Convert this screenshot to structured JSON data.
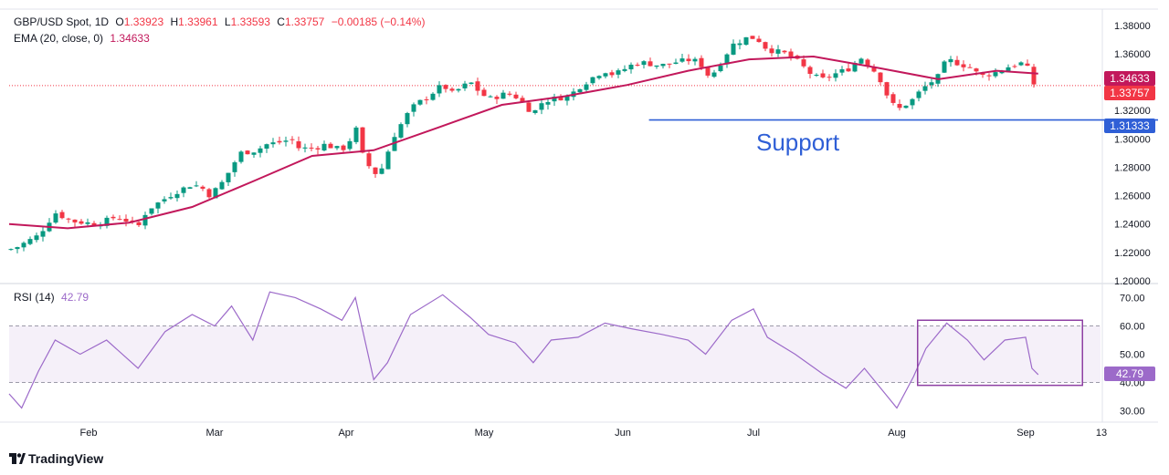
{
  "header": {
    "symbol": "GBP/USD Spot, 1D",
    "o_label": "O",
    "o_val": "1.33923",
    "h_label": "H",
    "h_val": "1.33961",
    "l_label": "L",
    "l_val": "1.33593",
    "c_label": "C",
    "c_val": "1.33757",
    "change": "−0.00185 (−0.14%)",
    "ema_label": "EMA (20, close, 0)",
    "ema_val": "1.34633"
  },
  "rsi_header": {
    "label": "RSI (14)",
    "value": "42.79"
  },
  "annotation": {
    "support_text": "Support"
  },
  "badges": {
    "ema": "1.34633",
    "close": "1.33757",
    "support": "1.31333",
    "rsi": "42.79"
  },
  "brand": {
    "name": "TradingView"
  },
  "colors": {
    "up": "#089981",
    "down": "#f23645",
    "ema": "#c2185b",
    "rsi": "#9c6ac9",
    "support": "#2f5fd6",
    "box": "#8e3fa3"
  },
  "chart_data": [
    {
      "type": "candlestick",
      "title": "GBP/USD Spot, 1D",
      "y_ticks": [
        "1.20000",
        "1.22000",
        "1.24000",
        "1.26000",
        "1.28000",
        "1.30000",
        "1.32000",
        "1.34000",
        "1.36000",
        "1.38000"
      ],
      "ylim": [
        1.2,
        1.385
      ],
      "x_ticks": [
        "Feb",
        "Mar",
        "Apr",
        "May",
        "Jun",
        "Jul",
        "Aug",
        "Sep",
        "13"
      ],
      "support_level": 1.31333,
      "price_close_line": 1.33757,
      "price_trend": [
        [
          "Jan 13",
          1.222
        ],
        [
          "Jan 15",
          1.224
        ],
        [
          "Jan 20",
          1.232
        ],
        [
          "Jan 24",
          1.248
        ],
        [
          "Jan 28",
          1.242
        ],
        [
          "Feb 3",
          1.24
        ],
        [
          "Feb 7",
          1.245
        ],
        [
          "Feb 10",
          1.242
        ],
        [
          "Feb 12",
          1.238
        ],
        [
          "Feb 14",
          1.25
        ],
        [
          "Feb 18",
          1.258
        ],
        [
          "Feb 20",
          1.262
        ],
        [
          "Feb 24",
          1.268
        ],
        [
          "Feb 26",
          1.266
        ],
        [
          "Feb 28",
          1.26
        ],
        [
          "Mar 3",
          1.27
        ],
        [
          "Mar 5",
          1.28
        ],
        [
          "Mar 7",
          1.29
        ],
        [
          "Mar 11",
          1.292
        ],
        [
          "Mar 13",
          1.296
        ],
        [
          "Mar 17",
          1.298
        ],
        [
          "Mar 19",
          1.3
        ],
        [
          "Mar 21",
          1.293
        ],
        [
          "Mar 25",
          1.294
        ],
        [
          "Mar 27",
          1.296
        ],
        [
          "Mar 31",
          1.292
        ],
        [
          "Apr 2",
          1.3
        ],
        [
          "Apr 3",
          1.31
        ],
        [
          "Apr 4",
          1.292
        ],
        [
          "Apr 7",
          1.275
        ],
        [
          "Apr 9",
          1.28
        ],
        [
          "Apr 11",
          1.3
        ],
        [
          "Apr 14",
          1.316
        ],
        [
          "Apr 16",
          1.324
        ],
        [
          "Apr 18",
          1.328
        ],
        [
          "Apr 22",
          1.338
        ],
        [
          "Apr 24",
          1.332
        ],
        [
          "Apr 28",
          1.34
        ],
        [
          "Apr 30",
          1.333
        ],
        [
          "May 2",
          1.328
        ],
        [
          "May 6",
          1.332
        ],
        [
          "May 8",
          1.33
        ],
        [
          "May 12",
          1.318
        ],
        [
          "May 14",
          1.326
        ],
        [
          "May 16",
          1.328
        ],
        [
          "May 20",
          1.33
        ],
        [
          "May 22",
          1.336
        ],
        [
          "May 26",
          1.345
        ],
        [
          "May 28",
          1.348
        ],
        [
          "May 30",
          1.345
        ],
        [
          "Jun 3",
          1.352
        ],
        [
          "Jun 5",
          1.354
        ],
        [
          "Jun 9",
          1.352
        ],
        [
          "Jun 11",
          1.352
        ],
        [
          "Jun 13",
          1.354
        ],
        [
          "Jun 17",
          1.356
        ],
        [
          "Jun 19",
          1.352
        ],
        [
          "Jun 21",
          1.343
        ],
        [
          "Jun 24",
          1.356
        ],
        [
          "Jun 26",
          1.366
        ],
        [
          "Jun 30",
          1.372
        ],
        [
          "Jul 2",
          1.37
        ],
        [
          "Jul 4",
          1.363
        ],
        [
          "Jul 8",
          1.36
        ],
        [
          "Jul 10",
          1.356
        ],
        [
          "Jul 14",
          1.344
        ],
        [
          "Jul 16",
          1.342
        ],
        [
          "Jul 18",
          1.345
        ],
        [
          "Jul 22",
          1.35
        ],
        [
          "Jul 24",
          1.358
        ],
        [
          "Jul 28",
          1.345
        ],
        [
          "Jul 30",
          1.33
        ],
        [
          "Aug 1",
          1.32
        ],
        [
          "Aug 5",
          1.328
        ],
        [
          "Aug 7",
          1.335
        ],
        [
          "Aug 11",
          1.344
        ],
        [
          "Aug 13",
          1.356
        ],
        [
          "Aug 15",
          1.354
        ],
        [
          "Aug 19",
          1.35
        ],
        [
          "Aug 21",
          1.344
        ],
        [
          "Aug 25",
          1.347
        ],
        [
          "Aug 27",
          1.35
        ],
        [
          "Aug 29",
          1.352
        ],
        [
          "Sep 1",
          1.354
        ],
        [
          "Sep 2",
          1.339
        ],
        [
          "Sep 3",
          1.338
        ]
      ],
      "ema_trend": [
        [
          "Jan 13",
          1.24
        ],
        [
          "Jan 27",
          1.237
        ],
        [
          "Feb 10",
          1.241
        ],
        [
          "Feb 24",
          1.252
        ],
        [
          "Mar 10",
          1.27
        ],
        [
          "Mar 24",
          1.288
        ],
        [
          "Apr 7",
          1.292
        ],
        [
          "Apr 21",
          1.308
        ],
        [
          "May 5",
          1.324
        ],
        [
          "May 19",
          1.33
        ],
        [
          "Jun 2",
          1.338
        ],
        [
          "Jun 16",
          1.348
        ],
        [
          "Jun 30",
          1.356
        ],
        [
          "Jul 14",
          1.358
        ],
        [
          "Jul 28",
          1.35
        ],
        [
          "Aug 11",
          1.342
        ],
        [
          "Aug 25",
          1.348
        ],
        [
          "Sep 3",
          1.346
        ]
      ]
    },
    {
      "type": "line",
      "title": "RSI (14)",
      "y_ticks": [
        "30.00",
        "40.00",
        "50.00",
        "60.00",
        "70.00"
      ],
      "ylim": [
        26,
        74
      ],
      "bands": [
        40,
        60
      ],
      "last_value": 42.79,
      "rsi_trend": [
        [
          "Jan 13",
          36
        ],
        [
          "Jan 16",
          31
        ],
        [
          "Jan 20",
          44
        ],
        [
          "Jan 24",
          55
        ],
        [
          "Jan 30",
          50
        ],
        [
          "Feb 5",
          55
        ],
        [
          "Feb 12",
          45
        ],
        [
          "Feb 18",
          58
        ],
        [
          "Feb 24",
          64
        ],
        [
          "Mar 1",
          60
        ],
        [
          "Mar 5",
          67
        ],
        [
          "Mar 10",
          55
        ],
        [
          "Mar 14",
          72
        ],
        [
          "Mar 20",
          70
        ],
        [
          "Mar 26",
          66
        ],
        [
          "Mar 31",
          62
        ],
        [
          "Apr 3",
          70
        ],
        [
          "Apr 7",
          41
        ],
        [
          "Apr 10",
          47
        ],
        [
          "Apr 15",
          64
        ],
        [
          "Apr 22",
          71
        ],
        [
          "Apr 28",
          63
        ],
        [
          "May 2",
          57
        ],
        [
          "May 8",
          54
        ],
        [
          "May 12",
          47
        ],
        [
          "May 16",
          55
        ],
        [
          "May 22",
          56
        ],
        [
          "May 28",
          61
        ],
        [
          "Jun 3",
          59
        ],
        [
          "Jun 10",
          57
        ],
        [
          "Jun 16",
          55
        ],
        [
          "Jun 20",
          50
        ],
        [
          "Jun 26",
          62
        ],
        [
          "Jul 1",
          66
        ],
        [
          "Jul 4",
          56
        ],
        [
          "Jul 10",
          50
        ],
        [
          "Jul 16",
          43
        ],
        [
          "Jul 21",
          38
        ],
        [
          "Jul 25",
          45
        ],
        [
          "Jul 30",
          35
        ],
        [
          "Aug 1",
          31
        ],
        [
          "Aug 5",
          42
        ],
        [
          "Aug 8",
          52
        ],
        [
          "Aug 13",
          61
        ],
        [
          "Aug 18",
          55
        ],
        [
          "Aug 22",
          48
        ],
        [
          "Aug 27",
          55
        ],
        [
          "Sep 1",
          56
        ],
        [
          "Sep 2",
          45
        ],
        [
          "Sep 3",
          42.79
        ]
      ]
    }
  ]
}
